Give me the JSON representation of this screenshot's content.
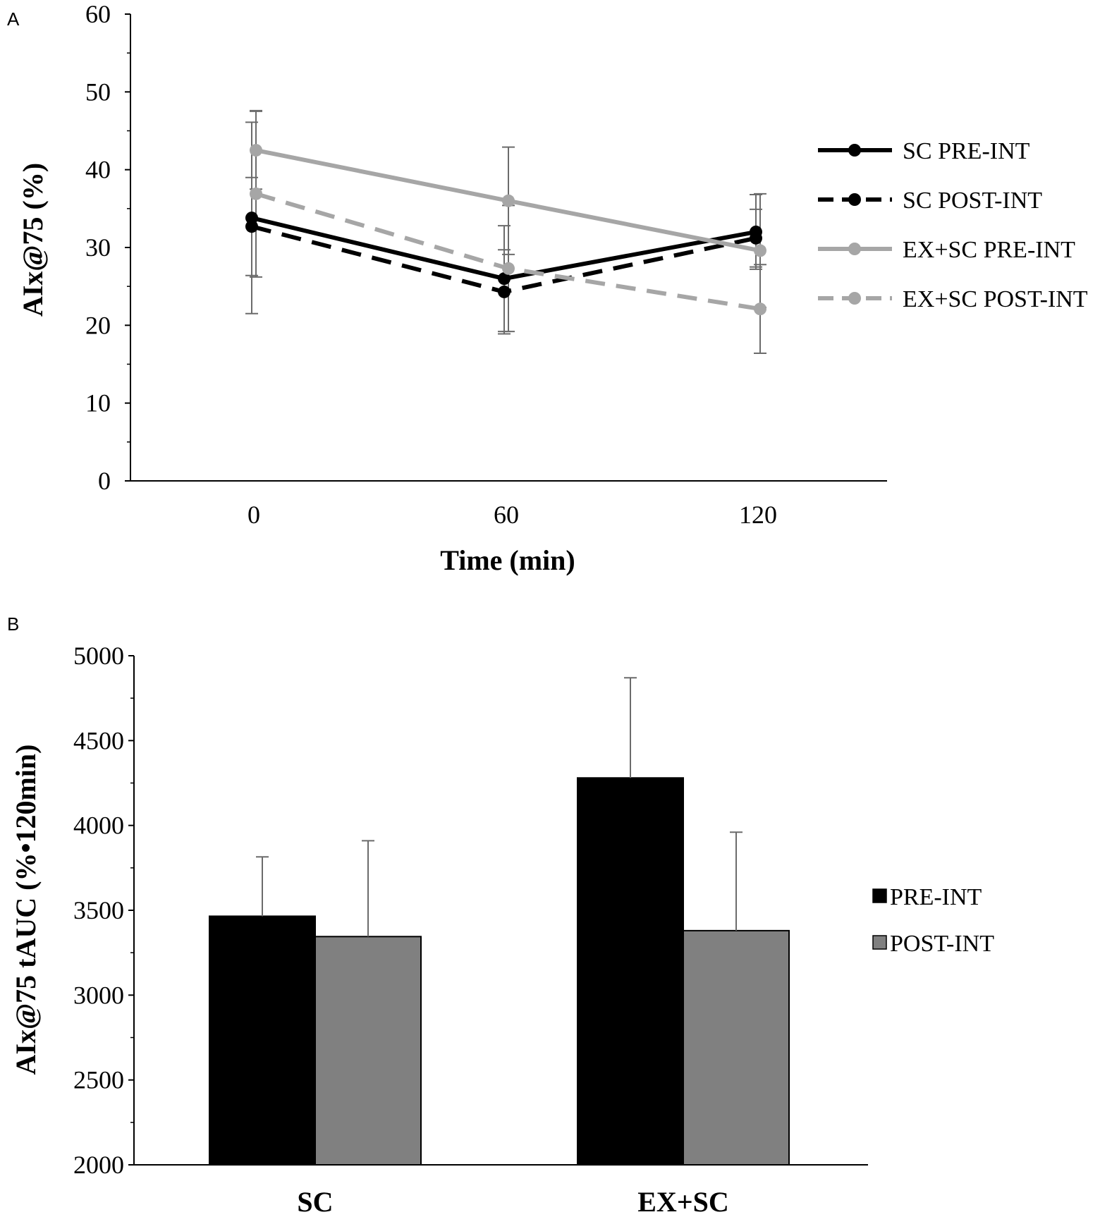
{
  "chart_data": [
    {
      "panel": "A",
      "type": "line",
      "xlabel": "Time (min)",
      "ylabel": "AIx@75 (%)",
      "x": [
        0,
        60,
        120
      ],
      "x_tick_labels": [
        "0",
        "60",
        "120"
      ],
      "ylim": [
        0,
        60
      ],
      "y_ticks": [
        0,
        10,
        20,
        30,
        40,
        50,
        60
      ],
      "y_tick_labels": [
        "0",
        "10",
        "20",
        "30",
        "40",
        "50",
        "60"
      ],
      "grid": false,
      "legend_position": "right",
      "series": [
        {
          "name": "SC PRE-INT",
          "values": [
            33.8,
            26.0,
            32.0
          ],
          "errors": [
            12.3,
            6.8,
            4.8
          ],
          "color": "#000000",
          "dash": "solid"
        },
        {
          "name": "SC POST-INT",
          "values": [
            32.7,
            24.3,
            31.2
          ],
          "errors": [
            6.3,
            5.4,
            3.7
          ],
          "color": "#000000",
          "dash": "dashed"
        },
        {
          "name": "EX+SC PRE-INT",
          "values": [
            42.5,
            36.0,
            29.6
          ],
          "errors": [
            5.0,
            6.9,
            7.3
          ],
          "color": "#a6a6a6",
          "dash": "solid"
        },
        {
          "name": "EX+SC POST-INT",
          "values": [
            36.9,
            27.3,
            22.1
          ],
          "errors": [
            10.7,
            8.1,
            5.7
          ],
          "color": "#a6a6a6",
          "dash": "dashed"
        }
      ]
    },
    {
      "panel": "B",
      "type": "bar",
      "categories": [
        "SC",
        "EX+SC"
      ],
      "ylabel": "AIx@75 tAUC (%•120min)",
      "xlabel": "",
      "ylim": [
        2000,
        5000
      ],
      "y_ticks": [
        2000,
        2500,
        3000,
        3500,
        4000,
        4500,
        5000
      ],
      "y_tick_labels": [
        "2000",
        "2500",
        "3000",
        "3500",
        "4000",
        "4500",
        "5000"
      ],
      "grid": false,
      "legend_position": "right",
      "series": [
        {
          "name": "PRE-INT",
          "values": [
            3465,
            4280
          ],
          "errors": [
            350,
            590
          ],
          "color": "#000000"
        },
        {
          "name": "POST-INT",
          "values": [
            3345,
            3380
          ],
          "errors": [
            565,
            580
          ],
          "color": "#808080"
        }
      ]
    }
  ]
}
